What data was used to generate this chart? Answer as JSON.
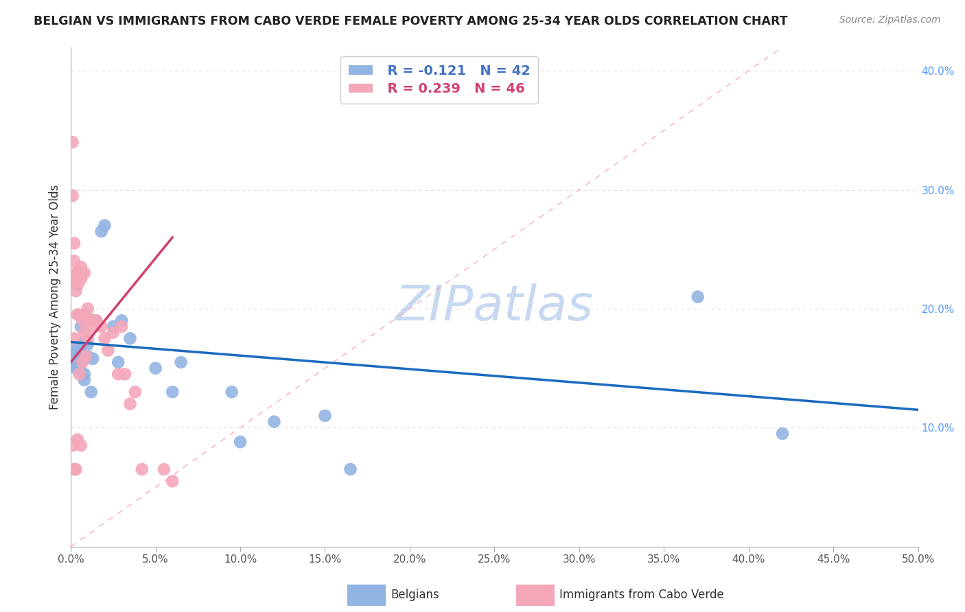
{
  "title": "BELGIAN VS IMMIGRANTS FROM CABO VERDE FEMALE POVERTY AMONG 25-34 YEAR OLDS CORRELATION CHART",
  "source": "Source: ZipAtlas.com",
  "ylabel": "Female Poverty Among 25-34 Year Olds",
  "xlim": [
    0.0,
    0.5
  ],
  "ylim": [
    0.0,
    0.42
  ],
  "xticks": [
    0.0,
    0.05,
    0.1,
    0.15,
    0.2,
    0.25,
    0.3,
    0.35,
    0.4,
    0.45,
    0.5
  ],
  "yticks_right": [
    0.1,
    0.2,
    0.3,
    0.4
  ],
  "belgian_R": -0.121,
  "belgian_N": 42,
  "caboverde_R": 0.239,
  "caboverde_N": 46,
  "belgian_color": "#92b4e3",
  "caboverde_color": "#f4a7b9",
  "belgian_line_color": "#1a6bbf",
  "caboverde_line_color": "#d04070",
  "diagonal_color": "#f4a7b9",
  "background_color": "#ffffff",
  "belgian_x": [
    0.001,
    0.001,
    0.002,
    0.002,
    0.003,
    0.003,
    0.003,
    0.004,
    0.004,
    0.004,
    0.005,
    0.005,
    0.005,
    0.006,
    0.006,
    0.006,
    0.007,
    0.007,
    0.008,
    0.008,
    0.009,
    0.01,
    0.01,
    0.012,
    0.013,
    0.015,
    0.018,
    0.02,
    0.025,
    0.028,
    0.03,
    0.035,
    0.05,
    0.06,
    0.065,
    0.095,
    0.1,
    0.12,
    0.15,
    0.165,
    0.37,
    0.42
  ],
  "belgian_y": [
    0.16,
    0.155,
    0.155,
    0.165,
    0.15,
    0.155,
    0.16,
    0.15,
    0.155,
    0.165,
    0.15,
    0.155,
    0.165,
    0.158,
    0.17,
    0.185,
    0.158,
    0.172,
    0.14,
    0.145,
    0.195,
    0.16,
    0.17,
    0.13,
    0.158,
    0.19,
    0.265,
    0.27,
    0.185,
    0.155,
    0.19,
    0.175,
    0.15,
    0.13,
    0.155,
    0.13,
    0.088,
    0.105,
    0.11,
    0.065,
    0.21,
    0.095
  ],
  "caboverde_x": [
    0.001,
    0.001,
    0.001,
    0.002,
    0.002,
    0.002,
    0.002,
    0.003,
    0.003,
    0.003,
    0.003,
    0.004,
    0.004,
    0.004,
    0.004,
    0.005,
    0.005,
    0.005,
    0.006,
    0.006,
    0.006,
    0.007,
    0.007,
    0.007,
    0.008,
    0.008,
    0.009,
    0.009,
    0.01,
    0.01,
    0.011,
    0.012,
    0.013,
    0.015,
    0.018,
    0.02,
    0.022,
    0.025,
    0.028,
    0.03,
    0.032,
    0.035,
    0.038,
    0.042,
    0.055,
    0.06
  ],
  "caboverde_y": [
    0.34,
    0.295,
    0.085,
    0.255,
    0.24,
    0.175,
    0.065,
    0.23,
    0.225,
    0.215,
    0.065,
    0.23,
    0.22,
    0.195,
    0.09,
    0.23,
    0.195,
    0.145,
    0.235,
    0.225,
    0.085,
    0.23,
    0.19,
    0.155,
    0.23,
    0.18,
    0.195,
    0.16,
    0.2,
    0.175,
    0.19,
    0.185,
    0.19,
    0.19,
    0.185,
    0.175,
    0.165,
    0.18,
    0.145,
    0.185,
    0.145,
    0.12,
    0.13,
    0.065,
    0.065,
    0.055
  ],
  "belgian_line_x": [
    0.0,
    0.5
  ],
  "belgian_line_y": [
    0.172,
    0.115
  ],
  "caboverde_line_x": [
    0.0,
    0.06
  ],
  "caboverde_line_y": [
    0.155,
    0.26
  ],
  "watermark": "ZIPatlas",
  "watermark_color": "#c8d8f0"
}
